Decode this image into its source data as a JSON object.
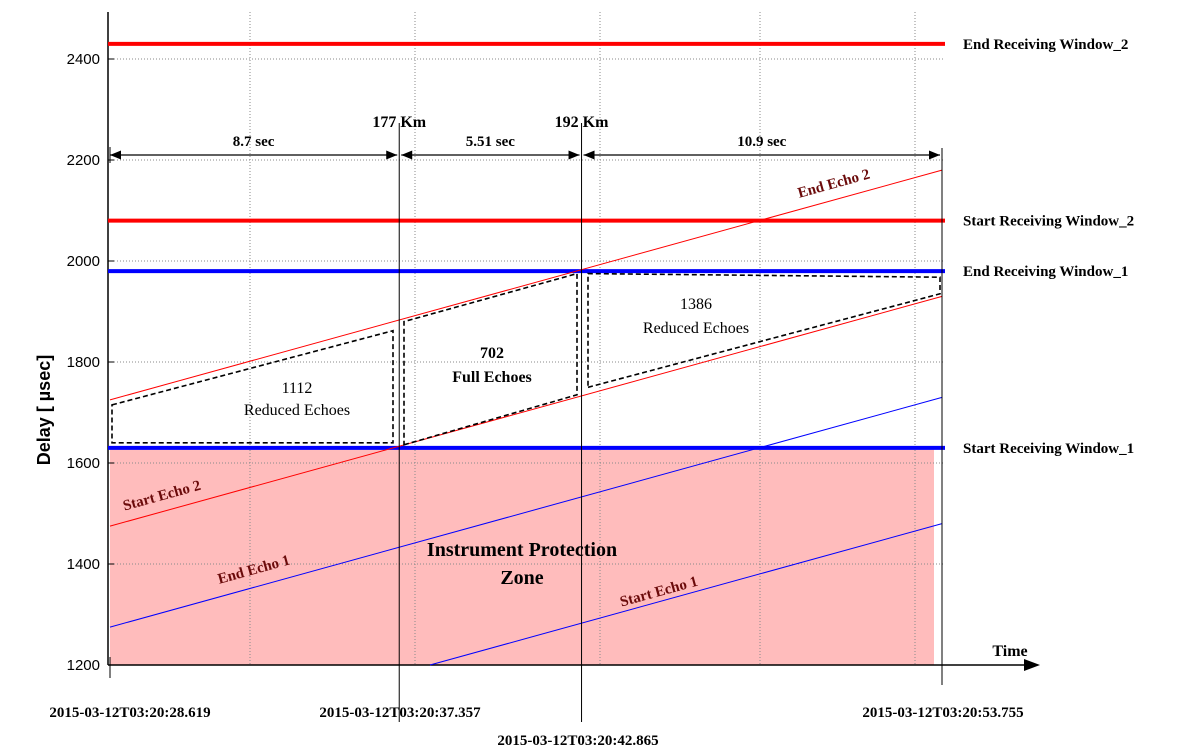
{
  "chart_data": {
    "type": "line",
    "title": "",
    "xlabel": "Time",
    "ylabel": "Delay [ µsec]",
    "ylim": [
      1200,
      2400
    ],
    "yticks": [
      1200,
      1400,
      1600,
      1800,
      2000,
      2200,
      2400
    ],
    "x_start_time_label": "2015-03-12T03:20:28.619",
    "x_end_time_label": "2015-03-12T03:20:53.755",
    "grid": true,
    "time_markers": [
      {
        "t": 28.619,
        "label": "2015-03-12T03:20:28.619"
      },
      {
        "t": 37.357,
        "label": "2015-03-12T03:20:37.357",
        "distance_label": "177 Km"
      },
      {
        "t": 42.865,
        "label": "2015-03-12T03:20:42.865",
        "distance_label": "192 Km"
      },
      {
        "t": 53.755,
        "label": "2015-03-12T03:20:53.755"
      }
    ],
    "windows": [
      {
        "label": "End  Receiving Window_2",
        "value": 2430,
        "color": "#ff0000"
      },
      {
        "label": "Start  Receiving Window_2",
        "value": 2080,
        "color": "#ff0000"
      },
      {
        "label": "End  Receiving Window_1",
        "value": 1980,
        "color": "#0000ff"
      },
      {
        "label": "Start  Receiving Window_1",
        "value": 1630,
        "color": "#0000ff"
      }
    ],
    "series": [
      {
        "name": "End Echo 2",
        "color": "#ff0000",
        "x": [
          28.619,
          53.755
        ],
        "y": [
          1725,
          2180
        ]
      },
      {
        "name": "Start  Echo 2",
        "color": "#ff0000",
        "x": [
          28.619,
          53.755
        ],
        "y": [
          1475,
          1930
        ]
      },
      {
        "name": "End  Echo 1",
        "color": "#0000ff",
        "x": [
          28.619,
          53.755
        ],
        "y": [
          1275,
          1730
        ]
      },
      {
        "name": "Start  Echo 1",
        "color": "#0000ff",
        "x": [
          28.619,
          53.755
        ],
        "y": [
          1025,
          1480
        ]
      }
    ],
    "intervals": [
      {
        "label": "8.7 sec",
        "from": 28.619,
        "to": 37.357
      },
      {
        "label": "5.51 sec",
        "from": 37.357,
        "to": 42.865
      },
      {
        "label": "10.9 sec",
        "from": 42.865,
        "to": 53.755
      }
    ],
    "regions": [
      {
        "count": "1112",
        "desc": "Reduced Echoes"
      },
      {
        "count": "702",
        "desc": "Full Echoes"
      },
      {
        "count": "1386",
        "desc": "Reduced Echoes"
      }
    ],
    "protection_zone": {
      "line1": "Instrument Protection",
      "line2": "Zone",
      "color": "#ffbcbc"
    }
  }
}
